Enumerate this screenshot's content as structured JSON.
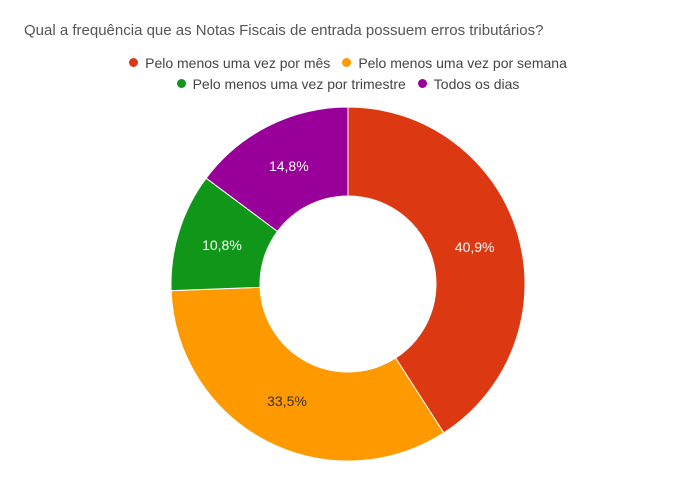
{
  "chart_data": {
    "type": "pie",
    "title": "Qual a frequência que as Notas Fiscais de entrada possuem erros tributários?",
    "legend_position": "top",
    "donut": true,
    "slices": [
      {
        "label": "Pelo menos uma vez por mês",
        "value": 40.9,
        "display": "40,9%",
        "color": "#dc3912",
        "label_color": "#ffffff"
      },
      {
        "label": "Pelo menos uma vez por semana",
        "value": 33.5,
        "display": "33,5%",
        "color": "#ff9900",
        "label_color": "#333333"
      },
      {
        "label": "Pelo menos uma vez por trimestre",
        "value": 10.8,
        "display": "10,8%",
        "color": "#109618",
        "label_color": "#ffffff"
      },
      {
        "label": "Todos os dias",
        "value": 14.8,
        "display": "14,8%",
        "color": "#990099",
        "label_color": "#ffffff"
      }
    ]
  }
}
